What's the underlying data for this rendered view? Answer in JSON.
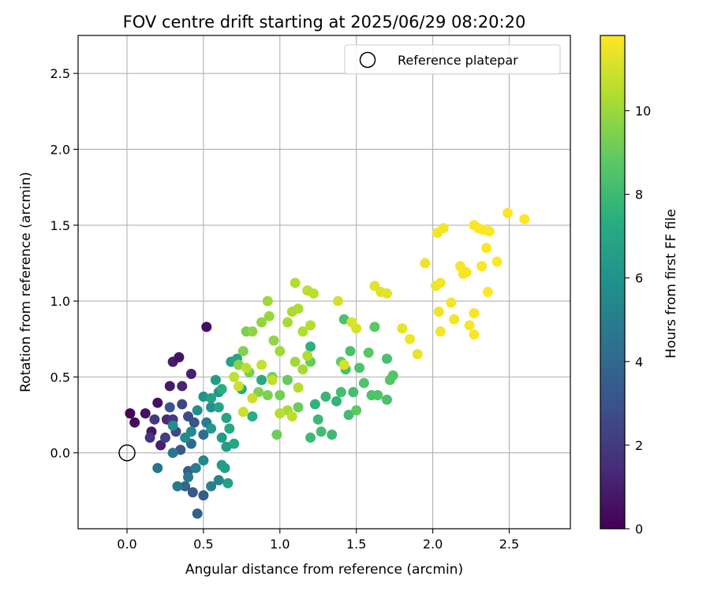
{
  "chart_data": {
    "type": "scatter",
    "title": "FOV centre drift starting at 2025/06/29 08:20:20",
    "xlabel": "Angular distance from reference (arcmin)",
    "ylabel": "Rotation from reference (arcmin)",
    "xlim": [
      -0.32,
      2.9
    ],
    "ylim": [
      -0.5,
      2.75
    ],
    "xticks": [
      "0.0",
      "0.5",
      "1.0",
      "1.5",
      "2.0",
      "2.5"
    ],
    "yticks": [
      "0.0",
      "0.5",
      "1.0",
      "1.5",
      "2.0",
      "2.5"
    ],
    "grid": true,
    "legend": {
      "placement": "top-right",
      "entries": [
        "Reference platepar"
      ]
    },
    "reference_point": {
      "x": 0.0,
      "y": 0.0,
      "marker": "open-circle",
      "color": "#000000"
    },
    "colorbar": {
      "label": "Hours from first FF file",
      "range": [
        0,
        11.8
      ],
      "ticks": [
        "0",
        "2",
        "4",
        "6",
        "8",
        "10"
      ],
      "colormap": "viridis"
    },
    "points": [
      [
        0.02,
        0.26,
        0.1
      ],
      [
        0.05,
        0.2,
        0.3
      ],
      [
        0.12,
        0.26,
        0.5
      ],
      [
        0.16,
        0.14,
        0.7
      ],
      [
        0.2,
        0.33,
        0.5
      ],
      [
        0.3,
        0.6,
        0.9
      ],
      [
        0.34,
        0.63,
        0.6
      ],
      [
        0.28,
        0.44,
        0.8
      ],
      [
        0.36,
        0.44,
        1.2
      ],
      [
        0.42,
        0.52,
        1.1
      ],
      [
        0.52,
        0.83,
        0.4
      ],
      [
        0.22,
        0.05,
        1.0
      ],
      [
        0.26,
        0.22,
        1.4
      ],
      [
        0.15,
        0.1,
        1.8
      ],
      [
        0.18,
        0.22,
        2.0
      ],
      [
        0.3,
        0.22,
        1.9
      ],
      [
        0.25,
        0.1,
        2.2
      ],
      [
        0.32,
        0.14,
        2.5
      ],
      [
        0.36,
        0.32,
        2.4
      ],
      [
        0.4,
        0.24,
        2.7
      ],
      [
        0.44,
        0.2,
        3.0
      ],
      [
        0.28,
        0.3,
        3.1
      ],
      [
        0.35,
        0.02,
        3.3
      ],
      [
        0.4,
        -0.12,
        3.5
      ],
      [
        0.43,
        -0.26,
        3.2
      ],
      [
        0.5,
        -0.28,
        3.4
      ],
      [
        0.46,
        -0.4,
        3.6
      ],
      [
        0.38,
        -0.22,
        3.8
      ],
      [
        0.42,
        0.06,
        4.0
      ],
      [
        0.5,
        0.12,
        4.2
      ],
      [
        0.2,
        -0.1,
        4.5
      ],
      [
        0.3,
        0.0,
        4.6
      ],
      [
        0.33,
        -0.22,
        4.7
      ],
      [
        0.4,
        -0.16,
        4.8
      ],
      [
        0.45,
        -0.1,
        5.0
      ],
      [
        0.52,
        0.2,
        4.9
      ],
      [
        0.55,
        -0.22,
        5.2
      ],
      [
        0.6,
        -0.18,
        5.3
      ],
      [
        0.5,
        -0.05,
        5.4
      ],
      [
        0.42,
        0.14,
        5.5
      ],
      [
        0.38,
        0.1,
        5.6
      ],
      [
        0.3,
        0.18,
        5.7
      ],
      [
        0.46,
        0.28,
        5.8
      ],
      [
        0.55,
        0.3,
        5.9
      ],
      [
        0.5,
        0.37,
        6.1
      ],
      [
        0.6,
        0.4,
        6.2
      ],
      [
        0.55,
        0.16,
        6.3
      ],
      [
        0.62,
        0.1,
        6.4
      ],
      [
        0.65,
        0.04,
        6.5
      ],
      [
        0.62,
        -0.08,
        6.4
      ],
      [
        0.66,
        -0.2,
        6.6
      ],
      [
        0.58,
        0.48,
        6.5
      ],
      [
        0.68,
        0.6,
        6.7
      ],
      [
        0.72,
        0.62,
        7.0
      ],
      [
        0.6,
        0.3,
        6.8
      ],
      [
        0.65,
        0.23,
        6.9
      ],
      [
        0.7,
        0.06,
        6.9
      ],
      [
        0.67,
        0.16,
        7.1
      ],
      [
        0.64,
        -0.1,
        6.6
      ],
      [
        0.55,
        0.36,
        6.8
      ],
      [
        0.75,
        0.42,
        7.2
      ],
      [
        0.82,
        0.24,
        7.3
      ],
      [
        0.88,
        0.48,
        7.1
      ],
      [
        0.62,
        0.42,
        7.4
      ],
      [
        1.2,
        0.7,
        7.5
      ],
      [
        1.23,
        0.32,
        7.6
      ],
      [
        1.3,
        0.37,
        7.8
      ],
      [
        1.37,
        0.34,
        7.7
      ],
      [
        1.25,
        0.22,
        7.9
      ],
      [
        1.2,
        0.1,
        8.0
      ],
      [
        1.27,
        0.14,
        8.1
      ],
      [
        1.34,
        0.12,
        8.0
      ],
      [
        1.4,
        0.4,
        8.2
      ],
      [
        1.43,
        0.55,
        8.3
      ],
      [
        1.48,
        0.4,
        8.2
      ],
      [
        1.45,
        0.25,
        8.1
      ],
      [
        1.42,
        0.88,
        8.4
      ],
      [
        1.46,
        0.67,
        8.3
      ],
      [
        1.52,
        0.56,
        8.4
      ],
      [
        1.55,
        0.46,
        8.5
      ],
      [
        1.6,
        0.38,
        8.4
      ],
      [
        1.64,
        0.38,
        8.5
      ],
      [
        1.7,
        0.35,
        8.3
      ],
      [
        1.72,
        0.48,
        8.6
      ],
      [
        1.74,
        0.51,
        8.6
      ],
      [
        1.7,
        0.62,
        8.3
      ],
      [
        1.62,
        0.83,
        8.8
      ],
      [
        1.58,
        0.66,
        8.7
      ],
      [
        1.5,
        0.28,
        8.8
      ],
      [
        1.4,
        0.6,
        8.9
      ],
      [
        1.2,
        0.6,
        9.0
      ],
      [
        1.12,
        0.3,
        9.1
      ],
      [
        1.05,
        0.48,
        9.0
      ],
      [
        1.0,
        0.38,
        9.2
      ],
      [
        0.95,
        0.5,
        9.3
      ],
      [
        0.98,
        0.12,
        9.1
      ],
      [
        0.92,
        0.38,
        9.4
      ],
      [
        0.86,
        0.4,
        9.5
      ],
      [
        0.8,
        0.53,
        9.3
      ],
      [
        0.76,
        0.67,
        9.5
      ],
      [
        0.73,
        0.58,
        9.6
      ],
      [
        0.78,
        0.8,
        9.4
      ],
      [
        0.82,
        0.8,
        9.7
      ],
      [
        0.88,
        0.86,
        9.8
      ],
      [
        0.93,
        0.9,
        9.9
      ],
      [
        0.92,
        1.0,
        10.0
      ],
      [
        0.96,
        0.74,
        9.8
      ],
      [
        1.0,
        0.67,
        10.1
      ],
      [
        1.05,
        0.86,
        10.2
      ],
      [
        1.08,
        0.93,
        10.3
      ],
      [
        1.1,
        1.12,
        10.4
      ],
      [
        1.12,
        0.95,
        10.3
      ],
      [
        1.15,
        0.8,
        10.4
      ],
      [
        1.2,
        0.84,
        10.5
      ],
      [
        1.22,
        1.05,
        10.6
      ],
      [
        1.18,
        1.07,
        10.6
      ],
      [
        1.1,
        0.6,
        10.1
      ],
      [
        1.15,
        0.55,
        10.2
      ],
      [
        1.05,
        0.28,
        10.2
      ],
      [
        1.0,
        0.26,
        10.5
      ],
      [
        0.95,
        0.48,
        10.7
      ],
      [
        0.88,
        0.58,
        10.8
      ],
      [
        0.78,
        0.56,
        10.6
      ],
      [
        0.7,
        0.5,
        10.7
      ],
      [
        0.73,
        0.44,
        10.9
      ],
      [
        0.82,
        0.36,
        10.8
      ],
      [
        0.76,
        0.27,
        10.9
      ],
      [
        1.08,
        0.24,
        10.6
      ],
      [
        1.12,
        0.43,
        10.5
      ],
      [
        1.18,
        0.64,
        10.4
      ],
      [
        1.38,
        1.0,
        11.0
      ],
      [
        1.42,
        0.58,
        11.1
      ],
      [
        1.47,
        0.86,
        11.2
      ],
      [
        1.5,
        0.82,
        11.1
      ],
      [
        1.62,
        1.1,
        11.3
      ],
      [
        1.66,
        1.06,
        11.2
      ],
      [
        1.7,
        1.05,
        11.3
      ],
      [
        1.8,
        0.82,
        11.4
      ],
      [
        1.85,
        0.75,
        11.5
      ],
      [
        1.9,
        0.65,
        11.4
      ],
      [
        1.95,
        1.25,
        11.5
      ],
      [
        2.02,
        1.1,
        11.5
      ],
      [
        2.05,
        1.12,
        11.6
      ],
      [
        2.03,
        1.45,
        11.6
      ],
      [
        2.07,
        1.48,
        11.6
      ],
      [
        2.04,
        0.93,
        11.5
      ],
      [
        2.05,
        0.8,
        11.6
      ],
      [
        2.12,
        0.99,
        11.6
      ],
      [
        2.14,
        0.88,
        11.6
      ],
      [
        2.18,
        1.23,
        11.7
      ],
      [
        2.22,
        1.19,
        11.7
      ],
      [
        2.2,
        1.18,
        11.7
      ],
      [
        2.24,
        0.84,
        11.7
      ],
      [
        2.27,
        0.78,
        11.7
      ],
      [
        2.27,
        0.92,
        11.7
      ],
      [
        2.27,
        1.5,
        11.8
      ],
      [
        2.3,
        1.48,
        11.8
      ],
      [
        2.33,
        1.47,
        11.8
      ],
      [
        2.35,
        1.35,
        11.8
      ],
      [
        2.37,
        1.46,
        11.8
      ],
      [
        2.32,
        1.23,
        11.8
      ],
      [
        2.36,
        1.06,
        11.8
      ],
      [
        2.42,
        1.26,
        11.8
      ],
      [
        2.49,
        1.58,
        11.8
      ],
      [
        2.6,
        1.54,
        11.8
      ]
    ]
  }
}
